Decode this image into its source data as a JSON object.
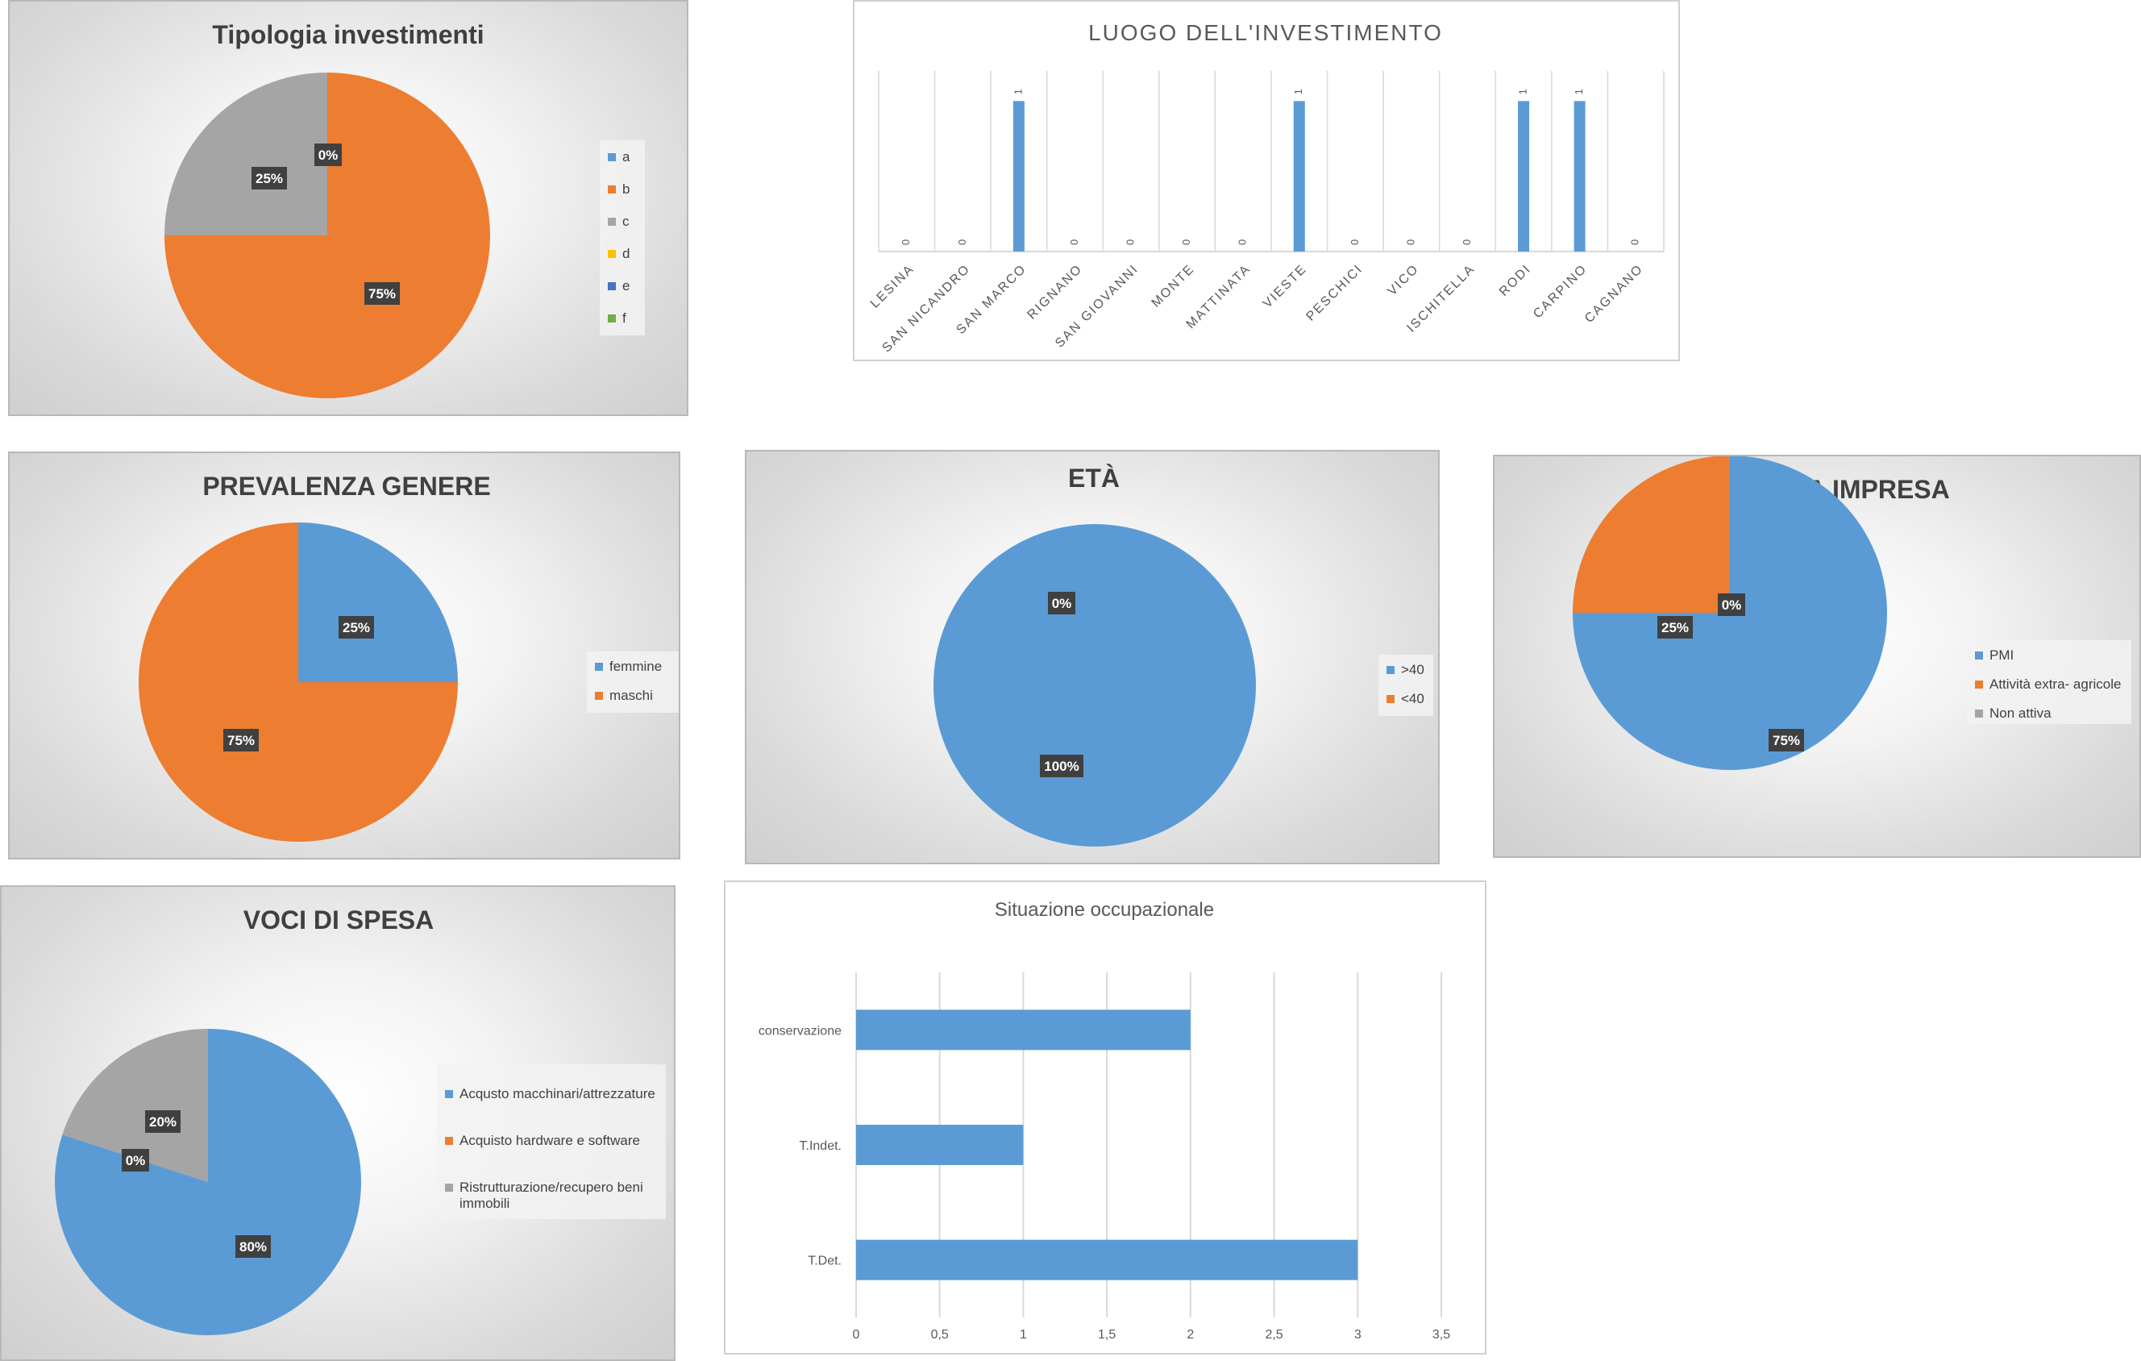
{
  "colors": {
    "blue": "#5b9bd5",
    "orange": "#ed7d31",
    "gray": "#a5a5a5",
    "yellow": "#ffc000",
    "darkblue": "#4472c4",
    "green": "#70ad47"
  },
  "chart_data": [
    {
      "id": "tipologia-investimenti",
      "type": "pie",
      "title": "Tipologia investimenti",
      "legend_position": "right",
      "slices": [
        {
          "name": "a",
          "value": 0,
          "label": "",
          "color": "#5b9bd5"
        },
        {
          "name": "b",
          "value": 75,
          "label": "75%",
          "color": "#ed7d31"
        },
        {
          "name": "c",
          "value": 25,
          "label": "25%",
          "color": "#a5a5a5"
        },
        {
          "name": "d",
          "value": 0,
          "label": "0%",
          "color": "#ffc000"
        },
        {
          "name": "e",
          "value": 0,
          "label": "",
          "color": "#4472c4"
        },
        {
          "name": "f",
          "value": 0,
          "label": "",
          "color": "#70ad47"
        }
      ]
    },
    {
      "id": "luogo-investimento",
      "type": "bar",
      "title": "LUOGO  DELL'INVESTIMENTO",
      "categories": [
        "LESINA",
        "SAN NICANDRO",
        "SAN MARCO",
        "RIGNANO",
        "SAN GIOVANNI",
        "MONTE",
        "MATTINATA",
        "VIESTE",
        "PESCHICI",
        "VICO",
        "ISCHITELLA",
        "RODI",
        "CARPINO",
        "CAGNANO"
      ],
      "values": [
        0,
        0,
        1,
        0,
        0,
        0,
        0,
        1,
        0,
        0,
        0,
        1,
        1,
        0
      ],
      "data_labels": [
        "0",
        "0",
        "1",
        "0",
        "0",
        "0",
        "0",
        "1",
        "0",
        "0",
        "0",
        "1",
        "1",
        "0"
      ],
      "ylim": [
        0,
        1.2
      ],
      "grid": "vertical",
      "color": "#5b9bd5"
    },
    {
      "id": "prevalenza-genere",
      "type": "pie",
      "title": "PREVALENZA GENERE",
      "legend_position": "right",
      "slices": [
        {
          "name": "femmine",
          "value": 25,
          "label": "25%",
          "color": "#5b9bd5"
        },
        {
          "name": "maschi",
          "value": 75,
          "label": "75%",
          "color": "#ed7d31"
        }
      ]
    },
    {
      "id": "eta",
      "type": "pie",
      "title": "ETÀ",
      "legend_position": "right",
      "slices": [
        {
          "name": ">40",
          "value": 100,
          "label": "100%",
          "color": "#5b9bd5"
        },
        {
          "name": "<40",
          "value": 0,
          "label": "0%",
          "color": "#ed7d31"
        }
      ]
    },
    {
      "id": "tipologia-impresa",
      "type": "pie",
      "title": "TIPOLOGIA IMPRESA",
      "legend_position": "right",
      "slices": [
        {
          "name": "PMI",
          "value": 75,
          "label": "75%",
          "color": "#5b9bd5"
        },
        {
          "name": "Attività extra- agricole",
          "value": 25,
          "label": "25%",
          "color": "#ed7d31"
        },
        {
          "name": "Non attiva",
          "value": 0,
          "label": "0%",
          "color": "#a5a5a5"
        }
      ]
    },
    {
      "id": "voci-di-spesa",
      "type": "pie",
      "title": "VOCI DI SPESA",
      "legend_position": "right",
      "slices": [
        {
          "name": "Acqusto macchinari/attrezzature",
          "value": 80,
          "label": "80%",
          "color": "#5b9bd5"
        },
        {
          "name": "Acquisto hardware e software",
          "value": 0,
          "label": "0%",
          "color": "#ed7d31"
        },
        {
          "name": "Ristrutturazione/recupero beni immobili",
          "value": 20,
          "label": "20%",
          "color": "#a5a5a5"
        }
      ]
    },
    {
      "id": "situazione-occupazionale",
      "type": "bar",
      "orientation": "horizontal",
      "title": "Situazione occupazionale",
      "categories": [
        "conservazione",
        "T.Indet.",
        "T.Det."
      ],
      "values": [
        2,
        1,
        3
      ],
      "xlim": [
        0,
        3.5
      ],
      "ticks": [
        "0",
        "0,5",
        "1",
        "1,5",
        "2",
        "2,5",
        "3",
        "3,5"
      ],
      "grid": "vertical",
      "color": "#5b9bd5"
    }
  ]
}
